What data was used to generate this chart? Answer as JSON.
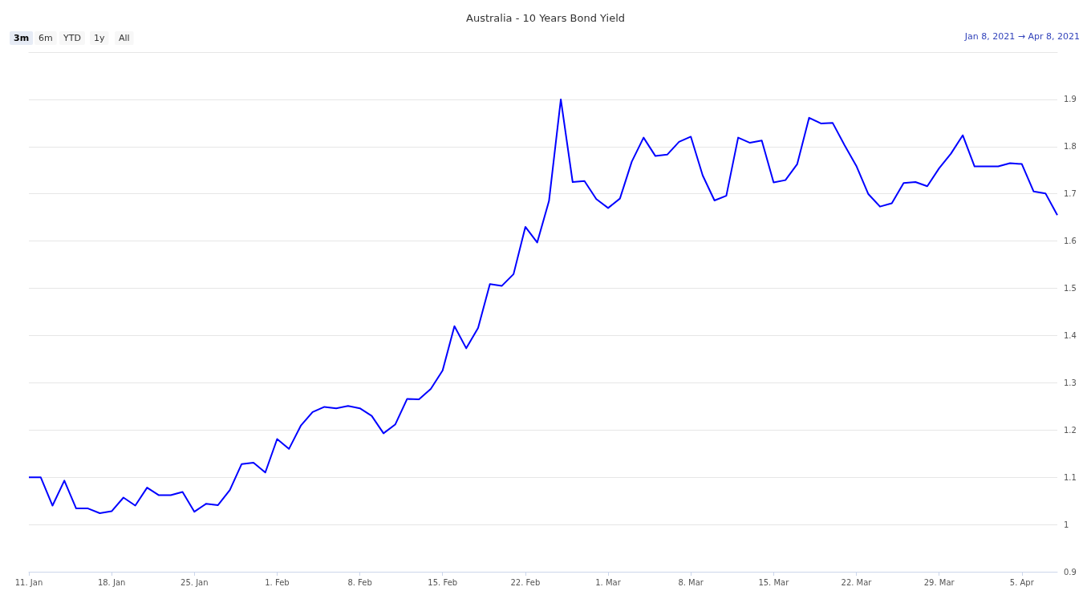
{
  "chart_data": {
    "type": "line",
    "title": "Australia - 10 Years Bond Yield",
    "annotations": [
      "3m",
      "6m",
      "YTD",
      "1y",
      "All",
      "Jan 8, 2021 → Apr 8, 2021"
    ],
    "x": [
      "2021-01-11",
      "2021-01-12",
      "2021-01-13",
      "2021-01-14",
      "2021-01-15",
      "2021-01-16",
      "2021-01-17",
      "2021-01-18",
      "2021-01-19",
      "2021-01-20",
      "2021-01-21",
      "2021-01-22",
      "2021-01-23",
      "2021-01-24",
      "2021-01-25",
      "2021-01-26",
      "2021-01-27",
      "2021-01-28",
      "2021-01-29",
      "2021-01-30",
      "2021-01-31",
      "2021-02-01",
      "2021-02-02",
      "2021-02-03",
      "2021-02-04",
      "2021-02-05",
      "2021-02-06",
      "2021-02-07",
      "2021-02-08",
      "2021-02-09",
      "2021-02-10",
      "2021-02-11",
      "2021-02-12",
      "2021-02-13",
      "2021-02-14",
      "2021-02-15",
      "2021-02-16",
      "2021-02-17",
      "2021-02-18",
      "2021-02-19",
      "2021-02-20",
      "2021-02-21",
      "2021-02-22",
      "2021-02-23",
      "2021-02-24",
      "2021-02-25",
      "2021-02-26",
      "2021-02-27",
      "2021-02-28",
      "2021-03-01",
      "2021-03-02",
      "2021-03-03",
      "2021-03-04",
      "2021-03-05",
      "2021-03-06",
      "2021-03-07",
      "2021-03-08",
      "2021-03-09",
      "2021-03-10",
      "2021-03-11",
      "2021-03-12",
      "2021-03-13",
      "2021-03-14",
      "2021-03-15",
      "2021-03-16",
      "2021-03-17",
      "2021-03-18",
      "2021-03-19",
      "2021-03-20",
      "2021-03-21",
      "2021-03-22",
      "2021-03-23",
      "2021-03-24",
      "2021-03-25",
      "2021-03-26",
      "2021-03-27",
      "2021-03-28",
      "2021-03-29",
      "2021-03-30",
      "2021-03-31",
      "2021-04-01",
      "2021-04-02",
      "2021-04-03",
      "2021-04-04",
      "2021-04-05",
      "2021-04-06",
      "2021-04-07",
      "2021-04-08"
    ],
    "series": [
      {
        "color": "#0000ff",
        "values": [
          1.1,
          1.1,
          1.04,
          1.093,
          1.034,
          1.034,
          1.024,
          1.028,
          1.057,
          1.04,
          1.078,
          1.062,
          1.062,
          1.069,
          1.027,
          1.044,
          1.041,
          1.073,
          1.128,
          1.131,
          1.11,
          1.181,
          1.16,
          1.209,
          1.238,
          1.249,
          1.246,
          1.251,
          1.246,
          1.23,
          1.193,
          1.212,
          1.266,
          1.265,
          1.287,
          1.326,
          1.42,
          1.373,
          1.416,
          1.509,
          1.505,
          1.53,
          1.63,
          1.597,
          1.685,
          1.9,
          1.725,
          1.727,
          1.689,
          1.67,
          1.69,
          1.768,
          1.819,
          1.78,
          1.783,
          1.81,
          1.821,
          1.739,
          1.686,
          1.696,
          1.819,
          1.808,
          1.813,
          1.724,
          1.729,
          1.763,
          1.861,
          1.849,
          1.85,
          1.803,
          1.759,
          1.7,
          1.673,
          1.68,
          1.723,
          1.725,
          1.716,
          1.754,
          1.785,
          1.824,
          1.758,
          1.758,
          1.758,
          1.765,
          1.763,
          1.705,
          1.701,
          1.655
        ]
      }
    ],
    "xlim": [
      "2021-01-11",
      "2021-04-08"
    ],
    "xticks": [
      {
        "value": "2021-01-11",
        "label": "11. Jan"
      },
      {
        "value": "2021-01-18",
        "label": "18. Jan"
      },
      {
        "value": "2021-01-25",
        "label": "25. Jan"
      },
      {
        "value": "2021-02-01",
        "label": "1. Feb"
      },
      {
        "value": "2021-02-08",
        "label": "8. Feb"
      },
      {
        "value": "2021-02-15",
        "label": "15. Feb"
      },
      {
        "value": "2021-02-22",
        "label": "22. Feb"
      },
      {
        "value": "2021-03-01",
        "label": "1. Mar"
      },
      {
        "value": "2021-03-08",
        "label": "8. Mar"
      },
      {
        "value": "2021-03-15",
        "label": "15. Mar"
      },
      {
        "value": "2021-03-22",
        "label": "22. Mar"
      },
      {
        "value": "2021-03-29",
        "label": "29. Mar"
      },
      {
        "value": "2021-04-05",
        "label": "5. Apr"
      }
    ],
    "ylim": [
      0.9,
      2.0
    ],
    "yticks": [
      0.9,
      1,
      1.1,
      1.2,
      1.3,
      1.4,
      1.5,
      1.6,
      1.7,
      1.8,
      1.9
    ],
    "grid": "y",
    "marker": "none",
    "line_style": "solid"
  }
}
